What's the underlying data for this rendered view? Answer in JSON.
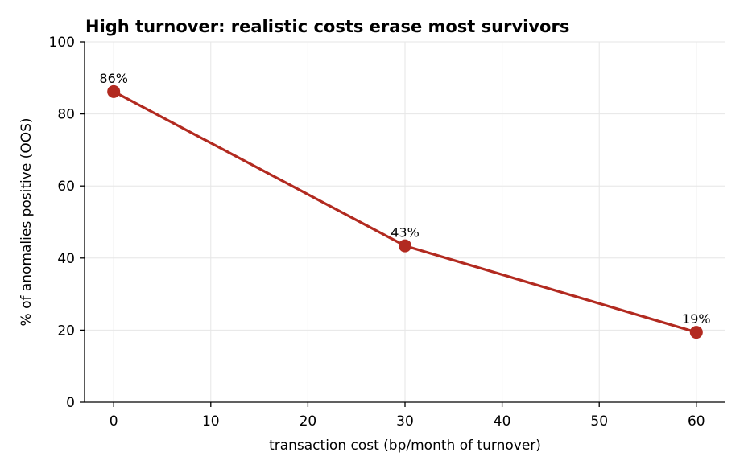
{
  "chart_data": {
    "type": "line",
    "title": "High turnover: realistic costs erase most survivors",
    "xlabel": "transaction cost (bp/month of turnover)",
    "ylabel": "% of anomalies positive (OOS)",
    "xlim": [
      -3,
      63
    ],
    "ylim": [
      0,
      100
    ],
    "xticks": [
      0,
      10,
      20,
      30,
      40,
      50,
      60
    ],
    "yticks": [
      0,
      20,
      40,
      60,
      80,
      100
    ],
    "grid": true,
    "series": [
      {
        "x": [
          0,
          30,
          60
        ],
        "y": [
          86.2,
          43.4,
          19.4
        ],
        "labels": [
          "86%",
          "43%",
          "19%"
        ],
        "color": "#b22a20"
      }
    ]
  }
}
